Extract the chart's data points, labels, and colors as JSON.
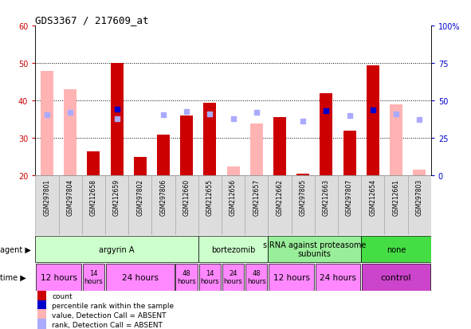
{
  "title": "GDS3367 / 217609_at",
  "samples": [
    "GSM297801",
    "GSM297804",
    "GSM212658",
    "GSM212659",
    "GSM297802",
    "GSM297806",
    "GSM212660",
    "GSM212655",
    "GSM212656",
    "GSM212657",
    "GSM212662",
    "GSM297805",
    "GSM212663",
    "GSM297807",
    "GSM212654",
    "GSM212661",
    "GSM297803"
  ],
  "count_values": [
    null,
    null,
    26.5,
    50.0,
    25.0,
    31.0,
    36.0,
    39.5,
    null,
    null,
    35.5,
    20.5,
    42.0,
    32.0,
    49.5,
    null,
    null
  ],
  "count_absent": [
    48.0,
    43.0,
    null,
    null,
    null,
    null,
    null,
    null,
    22.5,
    34.0,
    null,
    null,
    null,
    null,
    null,
    39.0,
    21.5
  ],
  "rank_present": [
    null,
    null,
    null,
    44.5,
    null,
    null,
    null,
    null,
    null,
    null,
    null,
    null,
    43.0,
    null,
    44.0,
    null,
    null
  ],
  "rank_absent": [
    40.5,
    42.0,
    null,
    38.0,
    null,
    40.5,
    42.5,
    41.0,
    38.0,
    42.0,
    null,
    36.5,
    null,
    40.0,
    null,
    41.0,
    37.5
  ],
  "ylim_left": [
    20,
    60
  ],
  "ylim_right": [
    0,
    100
  ],
  "yticks_left": [
    20,
    30,
    40,
    50,
    60
  ],
  "yticks_right": [
    0,
    25,
    50,
    75,
    100
  ],
  "ytick_labels_right": [
    "0",
    "25",
    "50",
    "75",
    "100%"
  ],
  "bar_color_present": "#cc0000",
  "bar_color_absent": "#ffb3b3",
  "rank_color_present": "#0000cc",
  "rank_color_absent": "#aaaaff",
  "background_color": "#ffffff",
  "agent_groups": [
    {
      "label": "argyrin A",
      "start": 0,
      "end": 7,
      "color": "#ccffcc"
    },
    {
      "label": "bortezomib",
      "start": 7,
      "end": 10,
      "color": "#ccffcc"
    },
    {
      "label": "siRNA against proteasome\nsubunits",
      "start": 10,
      "end": 14,
      "color": "#99ee99"
    },
    {
      "label": "none",
      "start": 14,
      "end": 17,
      "color": "#44dd44"
    }
  ],
  "time_groups": [
    {
      "label": "12 hours",
      "start": 0,
      "end": 2,
      "fontsize": 7.5
    },
    {
      "label": "14\nhours",
      "start": 2,
      "end": 3,
      "fontsize": 6
    },
    {
      "label": "24 hours",
      "start": 3,
      "end": 6,
      "fontsize": 7.5
    },
    {
      "label": "48\nhours",
      "start": 6,
      "end": 7,
      "fontsize": 6
    },
    {
      "label": "14\nhours",
      "start": 7,
      "end": 8,
      "fontsize": 6
    },
    {
      "label": "24\nhours",
      "start": 8,
      "end": 9,
      "fontsize": 6
    },
    {
      "label": "48\nhours",
      "start": 9,
      "end": 10,
      "fontsize": 6
    },
    {
      "label": "12 hours",
      "start": 10,
      "end": 12,
      "fontsize": 7.5
    },
    {
      "label": "24 hours",
      "start": 12,
      "end": 14,
      "fontsize": 7.5
    },
    {
      "label": "control",
      "start": 14,
      "end": 17,
      "fontsize": 8
    }
  ],
  "time_bg_light": "#ff88ff",
  "time_bg_dark": "#cc44cc",
  "legend_items": [
    {
      "label": "count",
      "color": "#cc0000"
    },
    {
      "label": "percentile rank within the sample",
      "color": "#0000cc"
    },
    {
      "label": "value, Detection Call = ABSENT",
      "color": "#ffb3b3"
    },
    {
      "label": "rank, Detection Call = ABSENT",
      "color": "#aaaaff"
    }
  ]
}
